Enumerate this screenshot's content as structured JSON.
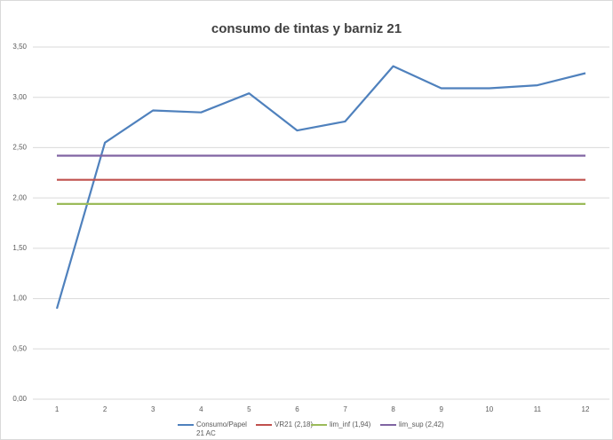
{
  "chart_data": {
    "type": "line",
    "title": "consumo de tintas y barniz 21",
    "categories": [
      "1",
      "2",
      "3",
      "4",
      "5",
      "6",
      "7",
      "8",
      "9",
      "10",
      "11",
      "12"
    ],
    "series": [
      {
        "name": "Consumo/Papel 21 AC",
        "color": "#4f81bd",
        "values": [
          0.9,
          2.55,
          2.87,
          2.85,
          3.04,
          2.67,
          2.76,
          3.31,
          3.09,
          3.09,
          3.12,
          3.24
        ]
      },
      {
        "name": "VR21 (2,18)",
        "color": "#c0504d",
        "values": [
          2.18,
          2.18,
          2.18,
          2.18,
          2.18,
          2.18,
          2.18,
          2.18,
          2.18,
          2.18,
          2.18,
          2.18
        ]
      },
      {
        "name": "lim_inf (1,94)",
        "color": "#9bbb59",
        "values": [
          1.94,
          1.94,
          1.94,
          1.94,
          1.94,
          1.94,
          1.94,
          1.94,
          1.94,
          1.94,
          1.94,
          1.94
        ]
      },
      {
        "name": "lim_sup (2,42)",
        "color": "#8064a2",
        "values": [
          2.42,
          2.42,
          2.42,
          2.42,
          2.42,
          2.42,
          2.42,
          2.42,
          2.42,
          2.42,
          2.42,
          2.42
        ]
      }
    ],
    "ylim": [
      0,
      3.5
    ],
    "yticks": [
      {
        "value": 0,
        "label": "0,00"
      },
      {
        "value": 0.5,
        "label": "0,50"
      },
      {
        "value": 1,
        "label": "1,00"
      },
      {
        "value": 1.5,
        "label": "1,50"
      },
      {
        "value": 2,
        "label": "2,00"
      },
      {
        "value": 2.5,
        "label": "2,50"
      },
      {
        "value": 3,
        "label": "3,00"
      },
      {
        "value": 3.5,
        "label": "3,50"
      }
    ],
    "grid": true,
    "legend": "bottom"
  }
}
